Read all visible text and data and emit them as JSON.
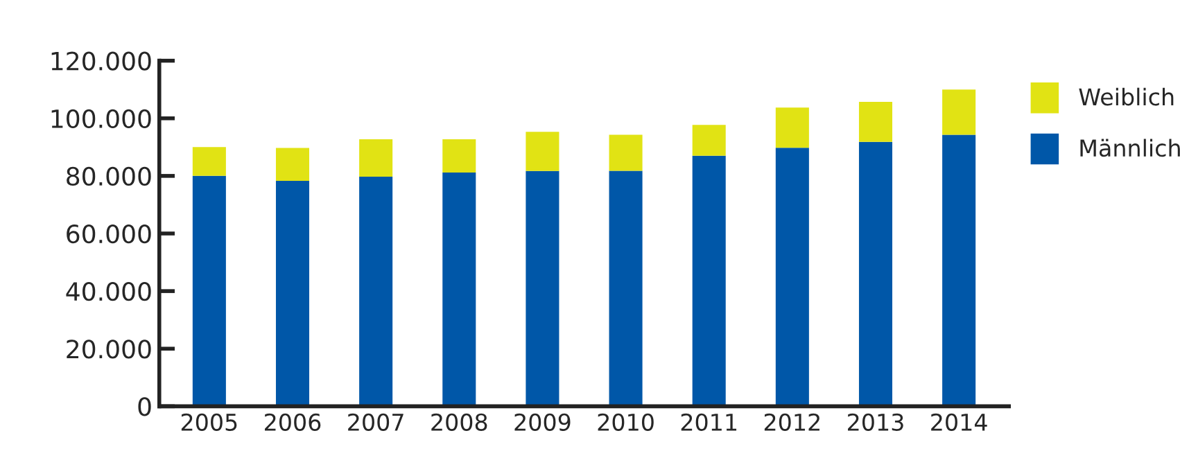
{
  "chart_data": {
    "type": "bar",
    "stacked": true,
    "categories": [
      "2005",
      "2006",
      "2007",
      "2008",
      "2009",
      "2010",
      "2011",
      "2012",
      "2013",
      "2014"
    ],
    "series": [
      {
        "name": "Männlich",
        "color": "#0057a8",
        "values": [
          80000,
          78300,
          79700,
          81200,
          81700,
          81800,
          87000,
          89800,
          91800,
          94300
        ]
      },
      {
        "name": "Weiblich",
        "color": "#e1e314",
        "values": [
          10000,
          11400,
          13000,
          11500,
          13600,
          12500,
          10700,
          13900,
          13900,
          15700
        ]
      }
    ],
    "ylim": [
      0,
      120000
    ],
    "yticks": [
      0,
      {
        "value": 20000,
        "label": "20.000"
      },
      {
        "value": 40000,
        "label": "40.000"
      },
      {
        "value": 60000,
        "label": "60.000"
      },
      {
        "value": 80000,
        "label": "80.000"
      },
      {
        "value": 100000,
        "label": "100.000"
      },
      {
        "value": 120000,
        "label": "120.000"
      }
    ],
    "grid": false,
    "legend": "top right"
  }
}
